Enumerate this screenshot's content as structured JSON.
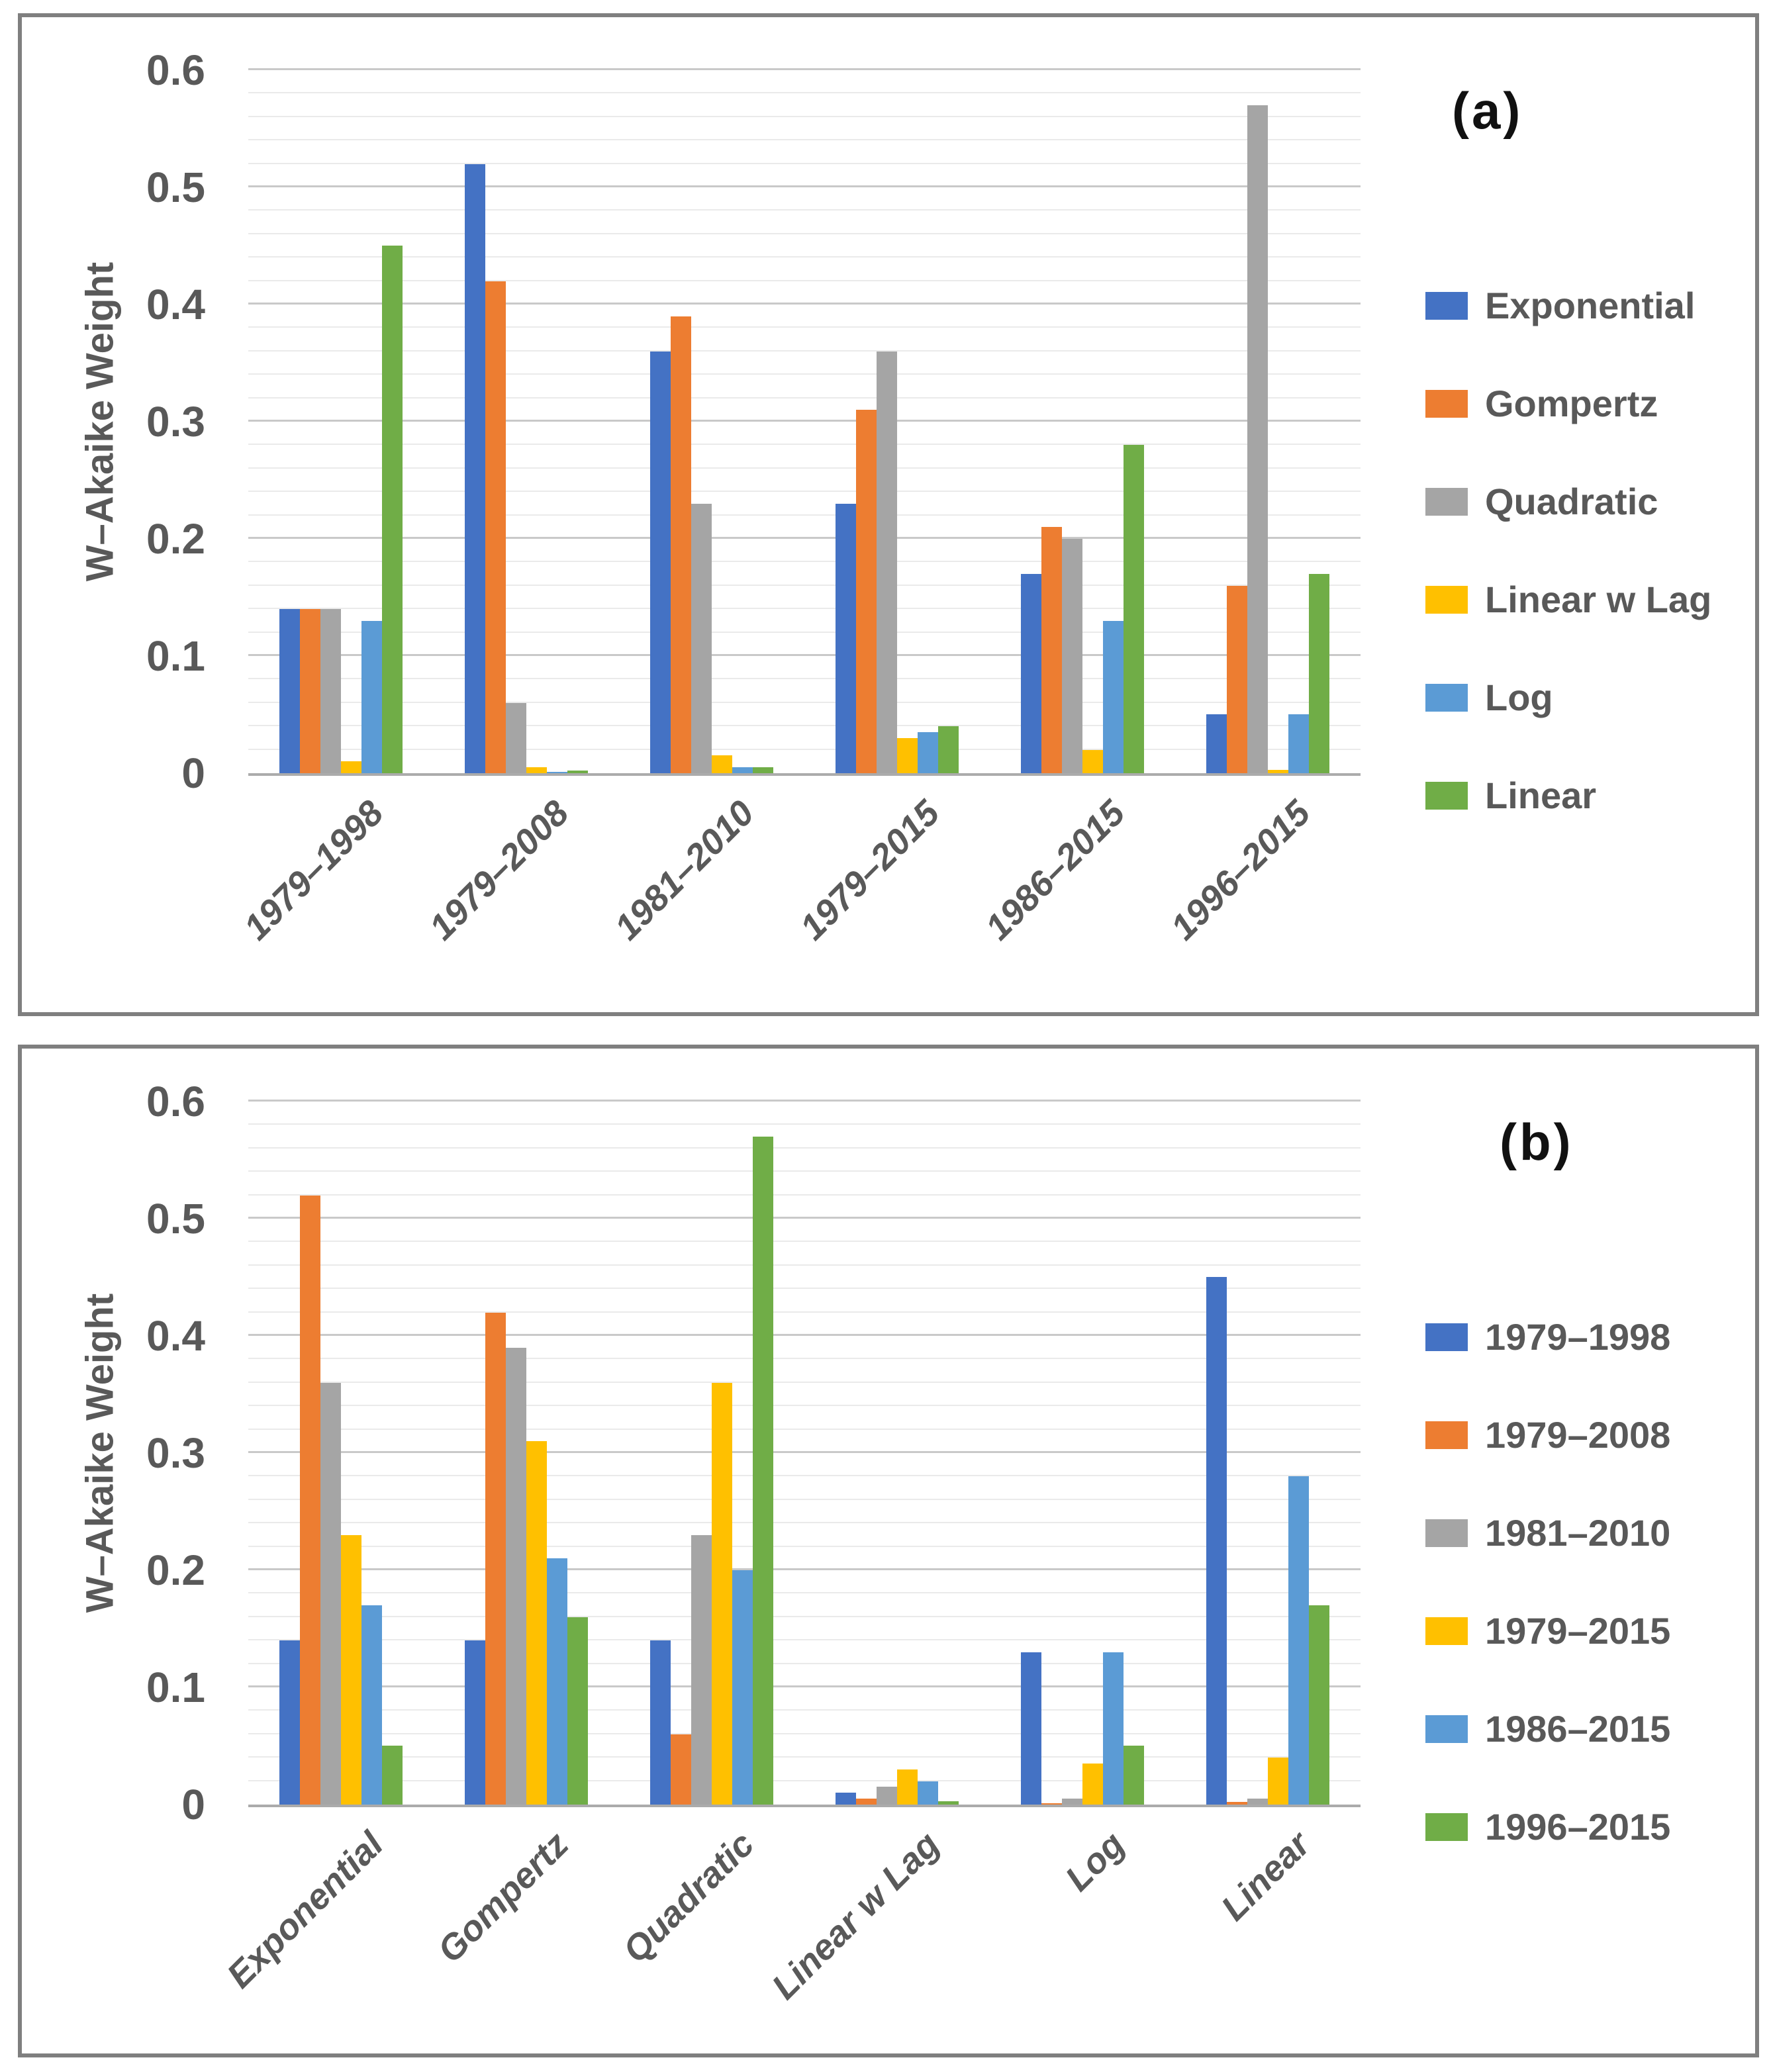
{
  "figure": {
    "text_color": "#595959",
    "frame_color": "#7f7f7f",
    "gridline_minor_color": "#eaeaea",
    "gridline_major_color": "#c9c9c9",
    "axis_line_color": "#ababab"
  },
  "chart_data": [
    {
      "type": "bar",
      "panel_label": "(a)",
      "title": "",
      "xlabel": "",
      "ylabel": "W–Akaike Weight",
      "ymax": 0.6,
      "ylim": [
        0,
        0.6
      ],
      "ytick_major": 0.1,
      "ytick_minor": 0.02,
      "grid": "horizontal",
      "legend_position": "right",
      "yticks": [
        {
          "label": "0.6",
          "value": 0.6
        },
        {
          "label": "0.5",
          "value": 0.5
        },
        {
          "label": "0.4",
          "value": 0.4
        },
        {
          "label": "0.3",
          "value": 0.3
        },
        {
          "label": "0.2",
          "value": 0.2
        },
        {
          "label": "0.1",
          "value": 0.1
        },
        {
          "label": "0",
          "value": 0.0
        }
      ],
      "categories": [
        "1979–1998",
        "1979–2008",
        "1981–2010",
        "1979–2015",
        "1986–2015",
        "1996–2015"
      ],
      "series": [
        {
          "name": "Exponential",
          "color": "#4472C4",
          "values": [
            0.14,
            0.52,
            0.36,
            0.23,
            0.17,
            0.05
          ]
        },
        {
          "name": "Gompertz",
          "color": "#ED7D31",
          "values": [
            0.14,
            0.42,
            0.39,
            0.31,
            0.21,
            0.16
          ]
        },
        {
          "name": "Quadratic",
          "color": "#A5A5A5",
          "values": [
            0.14,
            0.06,
            0.23,
            0.36,
            0.2,
            0.57
          ]
        },
        {
          "name": "Linear w Lag",
          "color": "#FFC000",
          "values": [
            0.01,
            0.005,
            0.015,
            0.03,
            0.02,
            0.003
          ]
        },
        {
          "name": "Log",
          "color": "#5B9BD5",
          "values": [
            0.13,
            0.001,
            0.005,
            0.035,
            0.13,
            0.05
          ]
        },
        {
          "name": "Linear",
          "color": "#70AD47",
          "values": [
            0.45,
            0.002,
            0.005,
            0.04,
            0.28,
            0.17
          ]
        }
      ]
    },
    {
      "type": "bar",
      "panel_label": "(b)",
      "title": "",
      "xlabel": "",
      "ylabel": "W–Akaike Weight",
      "ymax": 0.6,
      "ylim": [
        0,
        0.6
      ],
      "ytick_major": 0.1,
      "ytick_minor": 0.02,
      "grid": "horizontal",
      "legend_position": "right",
      "yticks": [
        {
          "label": "0.6",
          "value": 0.6
        },
        {
          "label": "0.5",
          "value": 0.5
        },
        {
          "label": "0.4",
          "value": 0.4
        },
        {
          "label": "0.3",
          "value": 0.3
        },
        {
          "label": "0.2",
          "value": 0.2
        },
        {
          "label": "0.1",
          "value": 0.1
        },
        {
          "label": "0",
          "value": 0.0
        }
      ],
      "categories": [
        "Exponential",
        "Gompertz",
        "Quadratic",
        "Linear w Lag",
        "Log",
        "Linear"
      ],
      "series": [
        {
          "name": "1979–1998",
          "color": "#4472C4",
          "values": [
            0.14,
            0.14,
            0.14,
            0.01,
            0.13,
            0.45
          ]
        },
        {
          "name": "1979–2008",
          "color": "#ED7D31",
          "values": [
            0.52,
            0.42,
            0.06,
            0.005,
            0.001,
            0.002
          ]
        },
        {
          "name": "1981–2010",
          "color": "#A5A5A5",
          "values": [
            0.36,
            0.39,
            0.23,
            0.015,
            0.005,
            0.005
          ]
        },
        {
          "name": "1979–2015",
          "color": "#FFC000",
          "values": [
            0.23,
            0.31,
            0.36,
            0.03,
            0.035,
            0.04
          ]
        },
        {
          "name": "1986–2015",
          "color": "#5B9BD5",
          "values": [
            0.17,
            0.21,
            0.2,
            0.02,
            0.13,
            0.28
          ]
        },
        {
          "name": "1996–2015",
          "color": "#70AD47",
          "values": [
            0.05,
            0.16,
            0.57,
            0.003,
            0.05,
            0.17
          ]
        }
      ]
    }
  ]
}
